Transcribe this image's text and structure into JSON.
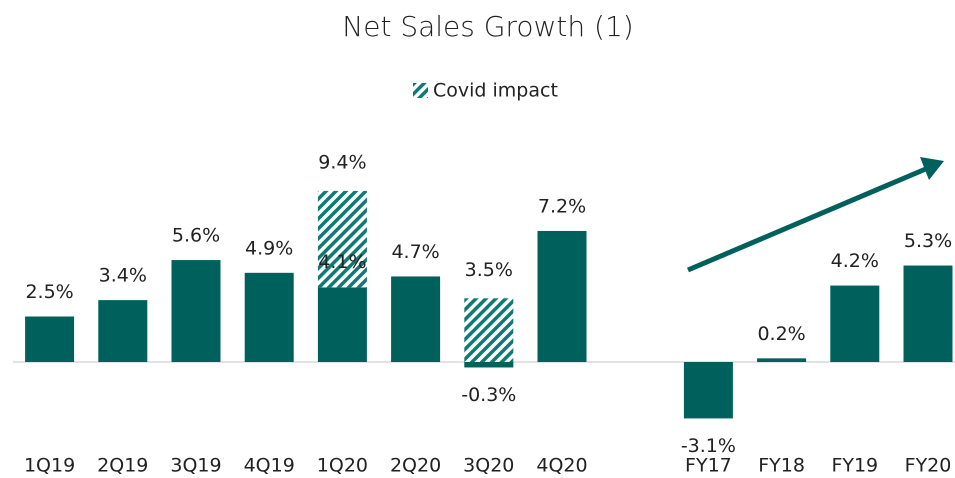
{
  "chart_data": {
    "type": "bar",
    "title": "Net Sales Growth (1)",
    "categories": [
      "1Q19",
      "2Q19",
      "3Q19",
      "4Q19",
      "1Q20",
      "2Q20",
      "3Q20",
      "4Q20",
      null,
      "FY17",
      "FY18",
      "FY19",
      "FY20"
    ],
    "series": [
      {
        "color": "#00605b",
        "values": [
          2.5,
          3.4,
          5.6,
          4.9,
          4.1,
          4.7,
          -0.3,
          7.2,
          null,
          -3.1,
          0.2,
          4.2,
          5.3
        ],
        "value_labels": [
          "2.5%",
          "3.4%",
          "5.6%",
          "4.9%",
          "4.1%",
          "4.7%",
          "-0.3%",
          "7.2%",
          null,
          "-3.1%",
          "0.2%",
          "4.2%",
          "5.3%"
        ]
      },
      {
        "name": "Covid impact",
        "color": "#0e7a74",
        "pattern": "hatch",
        "values": [
          null,
          null,
          null,
          null,
          5.3,
          null,
          3.5,
          null,
          null,
          null,
          null,
          null,
          null
        ],
        "value_labels": [
          null,
          null,
          null,
          null,
          null,
          null,
          "3.5%",
          null,
          null,
          null,
          null,
          null,
          null
        ]
      }
    ],
    "totals": [
      null,
      null,
      null,
      null,
      9.4,
      null,
      null,
      null,
      null,
      null,
      null,
      null,
      null
    ],
    "total_labels": [
      null,
      null,
      null,
      null,
      "9.4%",
      null,
      null,
      null,
      null,
      null,
      null,
      null,
      null
    ]
  }
}
